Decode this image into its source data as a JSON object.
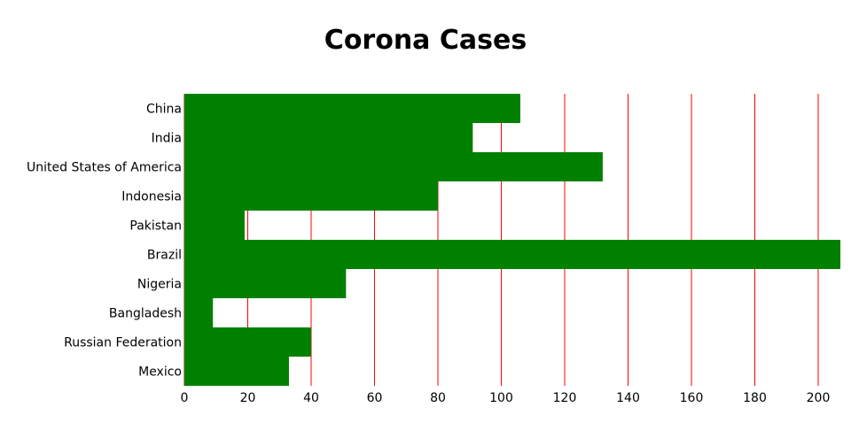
{
  "chart_data": {
    "type": "bar",
    "orientation": "horizontal",
    "title": "Corona Cases",
    "categories": [
      "China",
      "India",
      "United States of America",
      "Indonesia",
      "Pakistan",
      "Brazil",
      "Nigeria",
      "Bangladesh",
      "Russian Federation",
      "Mexico"
    ],
    "values": [
      106,
      91,
      132,
      80,
      19,
      207,
      51,
      9,
      40,
      33
    ],
    "xlim": [
      0,
      207
    ],
    "xticks": [
      0,
      20,
      40,
      60,
      80,
      100,
      120,
      140,
      160,
      180,
      200
    ],
    "grid": true,
    "colors": {
      "bar": "#008000",
      "grid": "#ff0000"
    }
  }
}
